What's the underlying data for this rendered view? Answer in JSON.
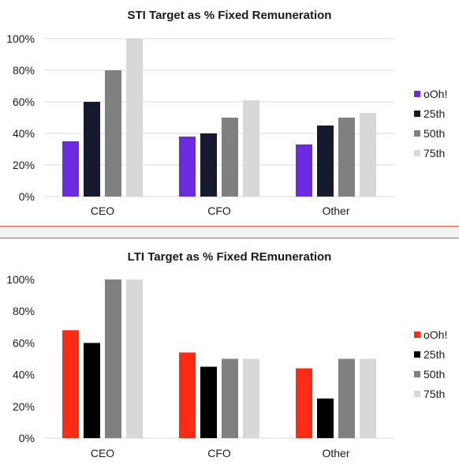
{
  "chart_data": [
    {
      "type": "bar",
      "title": "STI Target as % Fixed Remuneration",
      "xlabel": "",
      "ylabel": "",
      "categories": [
        "CEO",
        "CFO",
        "Other"
      ],
      "ylim": [
        0,
        100
      ],
      "yticks": [
        0,
        20,
        40,
        60,
        80,
        100
      ],
      "ytick_labels": [
        "0%",
        "20%",
        "40%",
        "60%",
        "80%",
        "100%"
      ],
      "grid": true,
      "legend_position": "right",
      "series": [
        {
          "name": "oOh!",
          "color": "#6c2be2",
          "values": [
            35,
            38,
            33
          ]
        },
        {
          "name": "25th",
          "color": "#151a2e",
          "values": [
            60,
            40,
            45
          ]
        },
        {
          "name": "50th",
          "color": "#808080",
          "values": [
            80,
            50,
            50
          ]
        },
        {
          "name": "75th",
          "color": "#d8d8d8",
          "values": [
            100,
            61,
            53
          ]
        }
      ]
    },
    {
      "type": "bar",
      "title": "LTI Target as % Fixed REmuneration",
      "xlabel": "",
      "ylabel": "",
      "categories": [
        "CEO",
        "CFO",
        "Other"
      ],
      "ylim": [
        0,
        100
      ],
      "yticks": [
        0,
        20,
        40,
        60,
        80,
        100
      ],
      "ytick_labels": [
        "0%",
        "20%",
        "40%",
        "60%",
        "80%",
        "100%"
      ],
      "grid": false,
      "legend_position": "right",
      "series": [
        {
          "name": "oOh!",
          "color": "#ff2b14",
          "values": [
            68,
            54,
            44
          ]
        },
        {
          "name": "25th",
          "color": "#000000",
          "values": [
            60,
            45,
            25
          ]
        },
        {
          "name": "50th",
          "color": "#808080",
          "values": [
            100,
            50,
            50
          ]
        },
        {
          "name": "75th",
          "color": "#d8d8d8",
          "values": [
            100,
            50,
            50
          ]
        }
      ]
    }
  ]
}
